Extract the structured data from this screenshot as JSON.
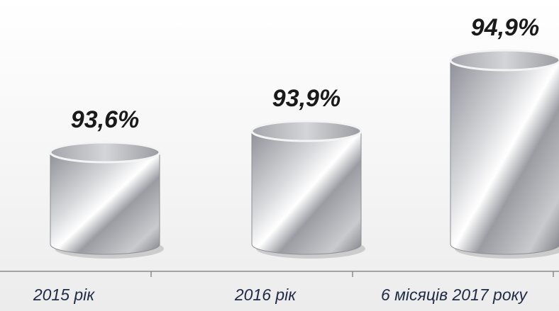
{
  "chart_data": {
    "type": "cylinder",
    "categories": [
      "2015 рік",
      "2016 рік",
      "6 місяців 2017 року"
    ],
    "values": [
      93.6,
      93.9,
      94.9
    ],
    "value_labels": [
      "93,6%",
      "93,9%",
      "94,9%"
    ],
    "color": "#b4b6bc",
    "ylim": [
      92.3,
      95.2
    ]
  }
}
